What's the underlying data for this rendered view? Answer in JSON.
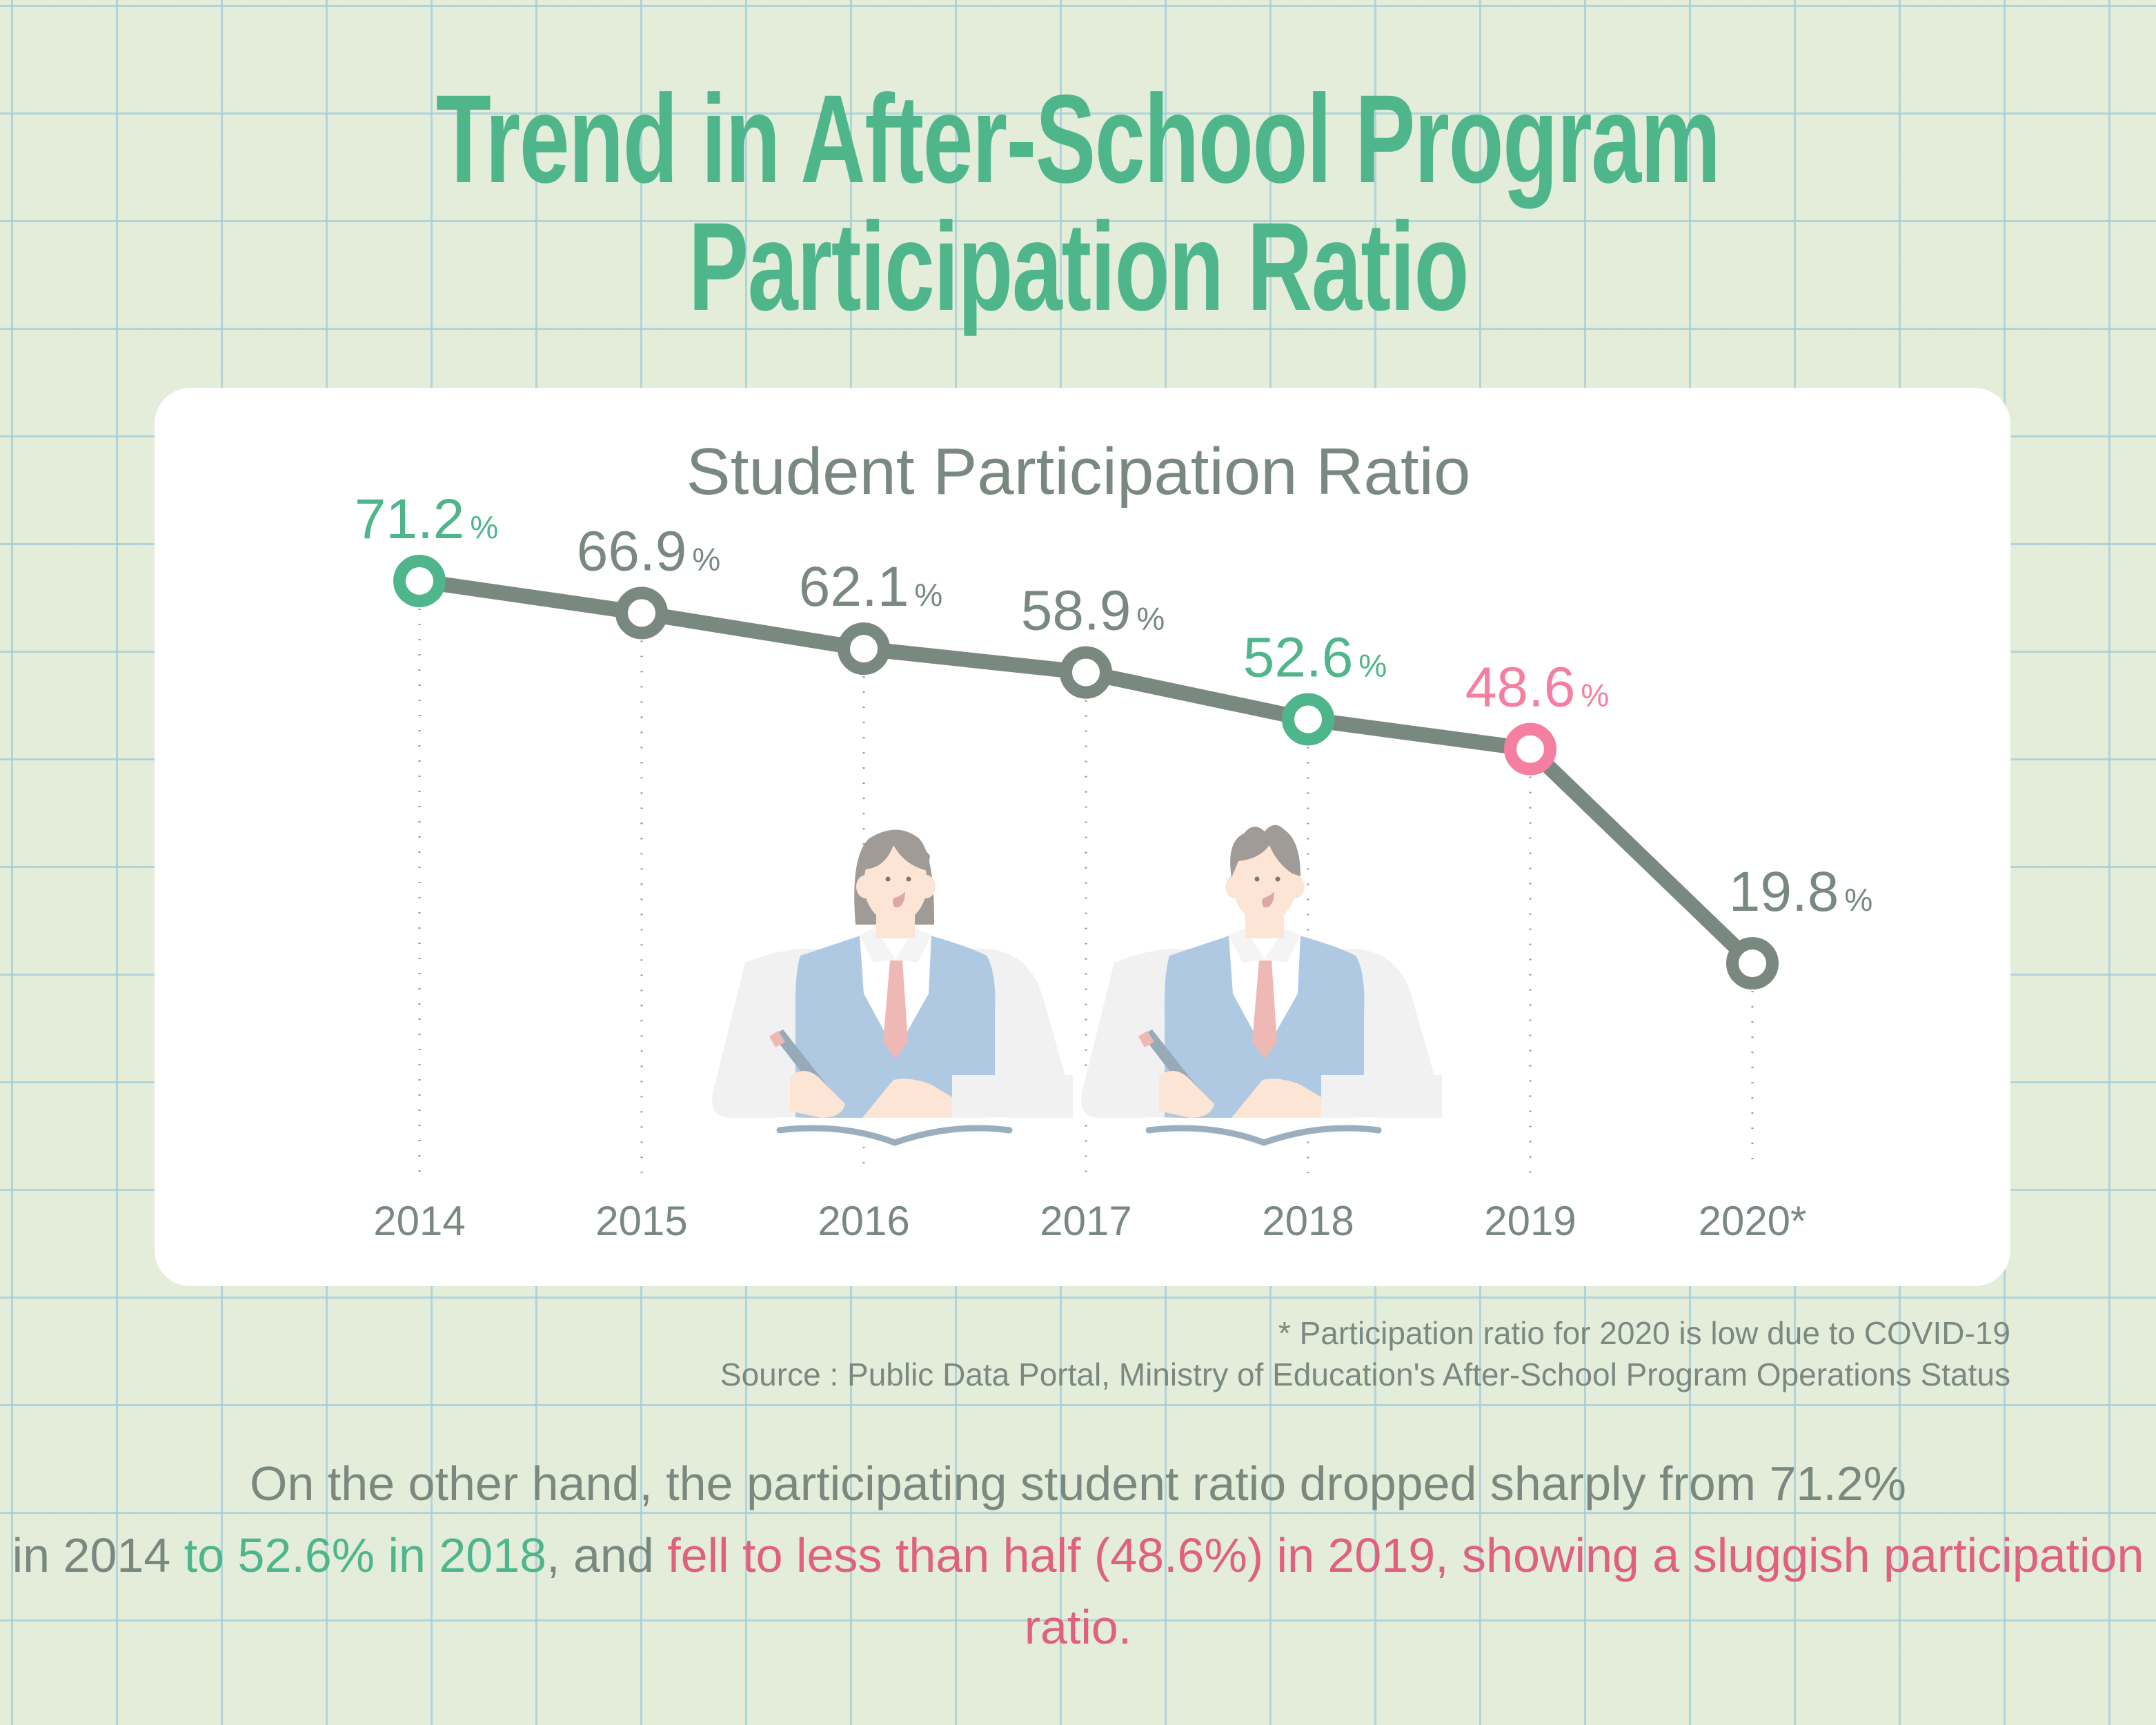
{
  "title": {
    "line1": "Trend in After-School Program",
    "line2": "Participation Ratio"
  },
  "colors": {
    "green": "#4fb68c",
    "gray": "#7a8980",
    "pink": "#f47fa0",
    "pink_text": "#e0607e",
    "background": "#e3edda"
  },
  "chart_data": {
    "type": "line",
    "title": "Student Participation Ratio",
    "categories": [
      "2014",
      "2015",
      "2016",
      "2017",
      "2018",
      "2019",
      "2020*"
    ],
    "values": [
      71.2,
      66.9,
      62.1,
      58.9,
      52.6,
      48.6,
      19.8
    ],
    "value_labels": [
      "71.2",
      "66.9",
      "62.1",
      "58.9",
      "52.6",
      "48.6",
      "19.8"
    ],
    "unit": "%",
    "highlight": [
      "green",
      "gray",
      "gray",
      "gray",
      "green",
      "pink",
      "gray"
    ],
    "xlabel": "",
    "ylabel": "",
    "grid": false,
    "legend": "none"
  },
  "footnotes": {
    "note": "* Participation ratio for 2020 is low due to COVID-19",
    "source": "Source : Public Data Portal, Ministry of Education's After-School Program Operations Status"
  },
  "summary": {
    "part1": "On the other hand, the participating student ratio dropped sharply from 71.2%",
    "part2": "in 2014 ",
    "part3": "to 52.6% in 2018",
    "part4": ", and ",
    "part5": "fell to less than half (48.6%) in 2019, showing a sluggish participation ratio."
  }
}
